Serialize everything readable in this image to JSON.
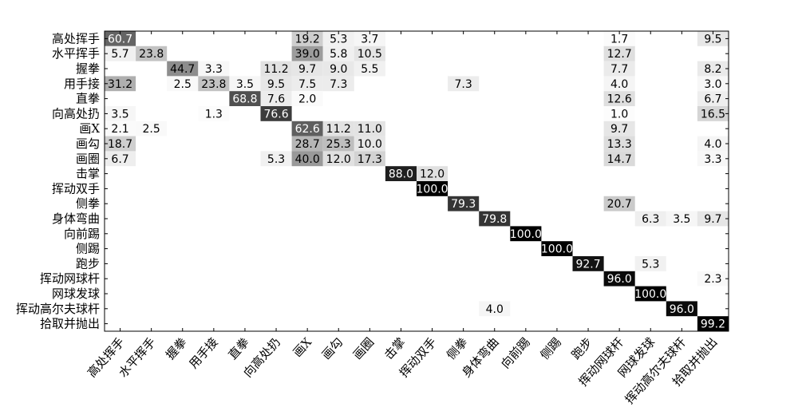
{
  "chart_data": {
    "type": "heatmap",
    "title": "",
    "xlabel": "",
    "ylabel": "",
    "value_range": [
      0,
      100
    ],
    "colormap": "white-to-black (greyscale)",
    "grid": false,
    "row_labels": [
      "高处挥手",
      "水平挥手",
      "握拳",
      "用手接",
      "直拳",
      "向高处扔",
      "画X",
      "画勾",
      "画圈",
      "击掌",
      "挥动双手",
      "侧拳",
      "身体弯曲",
      "向前踢",
      "侧踢",
      "跑步",
      "挥动网球杆",
      "网球发球",
      "挥动高尔夫球杆",
      "拾取并抛出"
    ],
    "col_labels": [
      "高处挥手",
      "水平挥手",
      "握拳",
      "用手接",
      "直拳",
      "向高处扔",
      "画X",
      "画勾",
      "画圈",
      "击掌",
      "挥动双手",
      "侧拳",
      "身体弯曲",
      "向前踢",
      "侧踢",
      "跑步",
      "挥动网球杆",
      "网球发球",
      "挥动高尔夫球杆",
      "拾取并抛出"
    ],
    "cells": [
      {
        "r": 0,
        "c": 0,
        "v": 60.7
      },
      {
        "r": 0,
        "c": 6,
        "v": 19.2
      },
      {
        "r": 0,
        "c": 7,
        "v": 5.3
      },
      {
        "r": 0,
        "c": 8,
        "v": 3.7
      },
      {
        "r": 0,
        "c": 16,
        "v": 1.7
      },
      {
        "r": 0,
        "c": 19,
        "v": 9.5
      },
      {
        "r": 1,
        "c": 0,
        "v": 5.7
      },
      {
        "r": 1,
        "c": 1,
        "v": 23.8
      },
      {
        "r": 1,
        "c": 6,
        "v": 39.0
      },
      {
        "r": 1,
        "c": 7,
        "v": 5.8
      },
      {
        "r": 1,
        "c": 8,
        "v": 10.5
      },
      {
        "r": 1,
        "c": 16,
        "v": 12.7
      },
      {
        "r": 2,
        "c": 2,
        "v": 44.7
      },
      {
        "r": 2,
        "c": 3,
        "v": 3.3
      },
      {
        "r": 2,
        "c": 5,
        "v": 11.2
      },
      {
        "r": 2,
        "c": 6,
        "v": 9.7
      },
      {
        "r": 2,
        "c": 7,
        "v": 9.0
      },
      {
        "r": 2,
        "c": 8,
        "v": 5.5
      },
      {
        "r": 2,
        "c": 16,
        "v": 7.7
      },
      {
        "r": 2,
        "c": 19,
        "v": 8.2
      },
      {
        "r": 3,
        "c": 0,
        "v": 31.2
      },
      {
        "r": 3,
        "c": 2,
        "v": 2.5
      },
      {
        "r": 3,
        "c": 3,
        "v": 23.8
      },
      {
        "r": 3,
        "c": 4,
        "v": 3.5
      },
      {
        "r": 3,
        "c": 5,
        "v": 9.5
      },
      {
        "r": 3,
        "c": 6,
        "v": 7.5
      },
      {
        "r": 3,
        "c": 7,
        "v": 7.3
      },
      {
        "r": 3,
        "c": 11,
        "v": 7.3
      },
      {
        "r": 3,
        "c": 16,
        "v": 4.0
      },
      {
        "r": 3,
        "c": 19,
        "v": 3.0
      },
      {
        "r": 4,
        "c": 4,
        "v": 68.8
      },
      {
        "r": 4,
        "c": 5,
        "v": 7.6
      },
      {
        "r": 4,
        "c": 6,
        "v": 2.0
      },
      {
        "r": 4,
        "c": 16,
        "v": 12.6
      },
      {
        "r": 4,
        "c": 19,
        "v": 6.7
      },
      {
        "r": 5,
        "c": 0,
        "v": 3.5
      },
      {
        "r": 5,
        "c": 3,
        "v": 1.3
      },
      {
        "r": 5,
        "c": 5,
        "v": 76.6
      },
      {
        "r": 5,
        "c": 16,
        "v": 1.0
      },
      {
        "r": 5,
        "c": 19,
        "v": 16.5
      },
      {
        "r": 6,
        "c": 0,
        "v": 2.1
      },
      {
        "r": 6,
        "c": 1,
        "v": 2.5
      },
      {
        "r": 6,
        "c": 6,
        "v": 62.6
      },
      {
        "r": 6,
        "c": 7,
        "v": 11.2
      },
      {
        "r": 6,
        "c": 8,
        "v": 11.0
      },
      {
        "r": 6,
        "c": 16,
        "v": 9.7
      },
      {
        "r": 7,
        "c": 0,
        "v": 18.7
      },
      {
        "r": 7,
        "c": 6,
        "v": 28.7
      },
      {
        "r": 7,
        "c": 7,
        "v": 25.3
      },
      {
        "r": 7,
        "c": 8,
        "v": 10.0
      },
      {
        "r": 7,
        "c": 16,
        "v": 13.3
      },
      {
        "r": 7,
        "c": 19,
        "v": 4.0
      },
      {
        "r": 8,
        "c": 0,
        "v": 6.7
      },
      {
        "r": 8,
        "c": 5,
        "v": 5.3
      },
      {
        "r": 8,
        "c": 6,
        "v": 40.0
      },
      {
        "r": 8,
        "c": 7,
        "v": 12.0
      },
      {
        "r": 8,
        "c": 8,
        "v": 17.3
      },
      {
        "r": 8,
        "c": 16,
        "v": 14.7
      },
      {
        "r": 8,
        "c": 19,
        "v": 3.3
      },
      {
        "r": 9,
        "c": 9,
        "v": 88.0
      },
      {
        "r": 9,
        "c": 10,
        "v": 12.0
      },
      {
        "r": 10,
        "c": 10,
        "v": 100.0
      },
      {
        "r": 11,
        "c": 11,
        "v": 79.3
      },
      {
        "r": 11,
        "c": 16,
        "v": 20.7
      },
      {
        "r": 12,
        "c": 12,
        "v": 79.8
      },
      {
        "r": 12,
        "c": 17,
        "v": 6.3
      },
      {
        "r": 12,
        "c": 18,
        "v": 3.5
      },
      {
        "r": 12,
        "c": 19,
        "v": 9.7
      },
      {
        "r": 13,
        "c": 13,
        "v": 100.0
      },
      {
        "r": 14,
        "c": 14,
        "v": 100.0
      },
      {
        "r": 15,
        "c": 15,
        "v": 92.7
      },
      {
        "r": 15,
        "c": 17,
        "v": 5.3
      },
      {
        "r": 16,
        "c": 16,
        "v": 96.0
      },
      {
        "r": 16,
        "c": 19,
        "v": 2.3
      },
      {
        "r": 17,
        "c": 17,
        "v": 100.0
      },
      {
        "r": 18,
        "c": 12,
        "v": 4.0
      },
      {
        "r": 18,
        "c": 18,
        "v": 96.0
      },
      {
        "r": 19,
        "c": 19,
        "v": 99.2
      }
    ]
  }
}
